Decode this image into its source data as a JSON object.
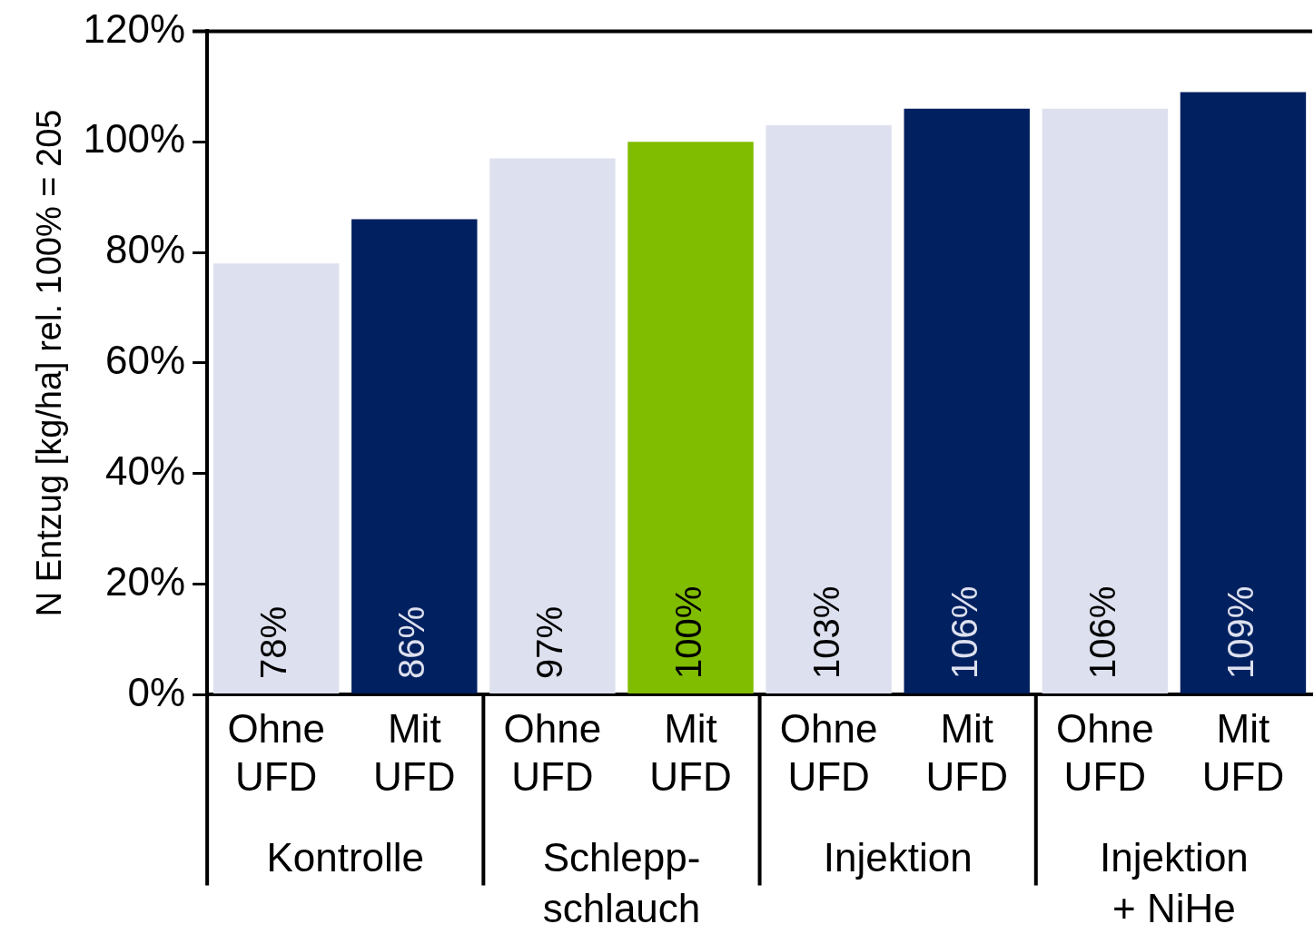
{
  "chart_data": {
    "type": "bar",
    "ylabel": "N Entzug [kg/ha] rel. 100% = 205",
    "categories": [
      "Ohne UFD",
      "Mit UFD",
      "Ohne UFD",
      "Mit UFD",
      "Ohne UFD",
      "Mit UFD",
      "Ohne UFD",
      "Mit UFD"
    ],
    "values": [
      78,
      86,
      97,
      100,
      103,
      106,
      106,
      109
    ],
    "colors": [
      "#dde0ee",
      "#002060",
      "#dde0ee",
      "#80bc00",
      "#dde0ee",
      "#002060",
      "#dde0ee",
      "#002060"
    ],
    "value_labels": [
      "78%",
      "86%",
      "97%",
      "100%",
      "103%",
      "106%",
      "106%",
      "109%"
    ],
    "ylim": [
      0,
      120
    ],
    "yticks": [
      {
        "value": 0,
        "label": "0%"
      },
      {
        "value": 20,
        "label": "20%"
      },
      {
        "value": 40,
        "label": "40%"
      },
      {
        "value": 60,
        "label": "60%"
      },
      {
        "value": 80,
        "label": "80%"
      },
      {
        "value": 100,
        "label": "100%"
      },
      {
        "value": 120,
        "label": "120%"
      }
    ],
    "annotations": [
      "Kontrolle",
      "Schlepp-\nschlauch",
      "Injektion",
      "Injektion\n+ NiHe"
    ],
    "grid": false,
    "legend": false
  }
}
